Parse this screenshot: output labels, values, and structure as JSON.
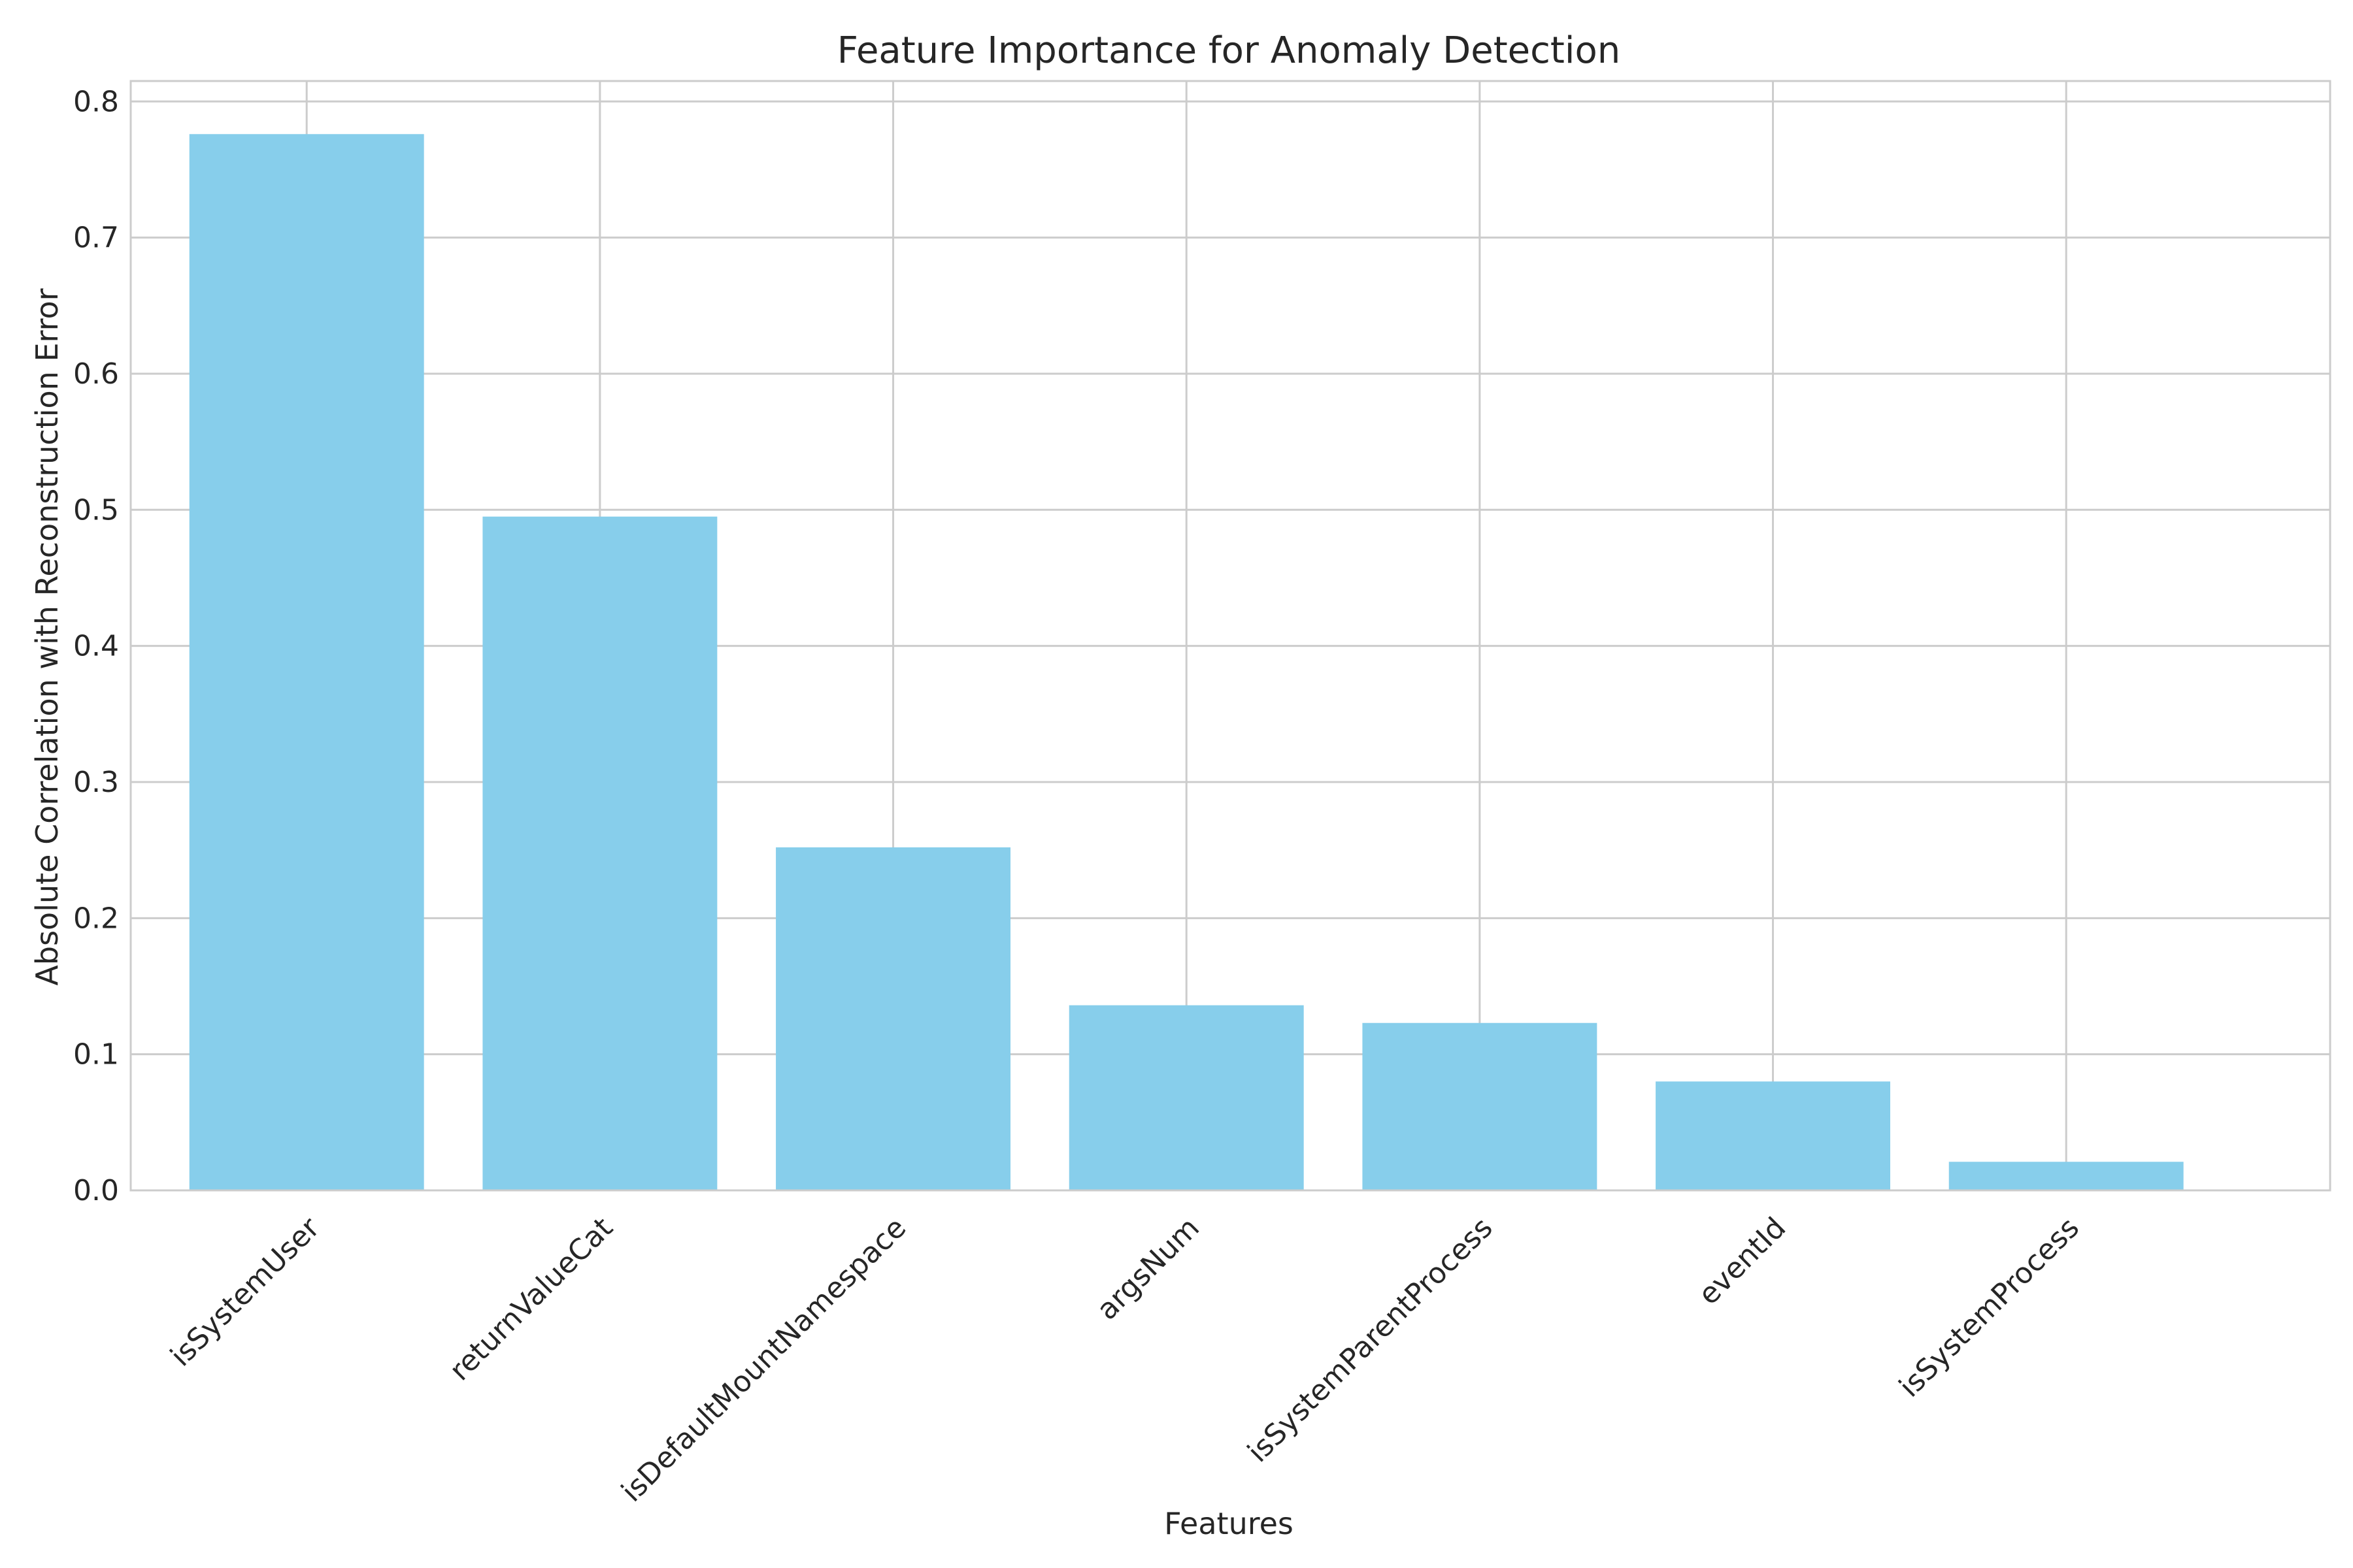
{
  "chart_data": {
    "type": "bar",
    "title": "Feature Importance for Anomaly Detection",
    "xlabel": "Features",
    "ylabel": "Absolute Correlation with Reconstruction Error",
    "categories": [
      "isSystemUser",
      "returnValueCat",
      "isDefaultMountNamespace",
      "argsNum",
      "isSystemParentProcess",
      "eventId",
      "isSystemProcess"
    ],
    "values": [
      0.776,
      0.495,
      0.252,
      0.136,
      0.123,
      0.08,
      0.021
    ],
    "ylim": [
      0,
      0.815
    ],
    "yticks": [
      "0.0",
      "0.1",
      "0.2",
      "0.3",
      "0.4",
      "0.5",
      "0.6",
      "0.7",
      "0.8"
    ],
    "grid": true,
    "bar_color": "#87ceeb",
    "grid_color": "#cccccc",
    "text_color": "#262626"
  }
}
